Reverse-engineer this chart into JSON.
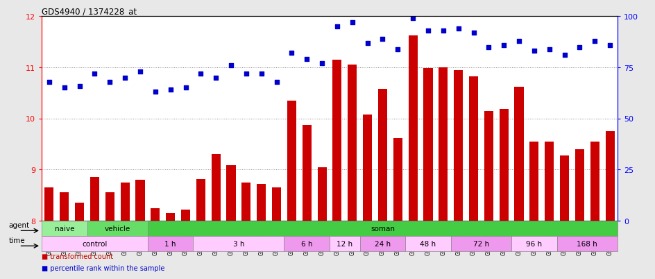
{
  "title": "GDS4940 / 1374228_at",
  "samples": [
    "GSM338857",
    "GSM338858",
    "GSM338859",
    "GSM338862",
    "GSM338864",
    "GSM338877",
    "GSM338880",
    "GSM338860",
    "GSM338861",
    "GSM338863",
    "GSM338865",
    "GSM338866",
    "GSM338867",
    "GSM338868",
    "GSM338869",
    "GSM338870",
    "GSM338871",
    "GSM338872",
    "GSM338873",
    "GSM338874",
    "GSM338875",
    "GSM338876",
    "GSM338878",
    "GSM338879",
    "GSM338881",
    "GSM338882",
    "GSM338883",
    "GSM338884",
    "GSM338885",
    "GSM338886",
    "GSM338887",
    "GSM338888",
    "GSM338889",
    "GSM338890",
    "GSM338891",
    "GSM338892",
    "GSM338893",
    "GSM338894"
  ],
  "bar_values": [
    8.65,
    8.55,
    8.35,
    8.85,
    8.55,
    8.75,
    8.8,
    8.25,
    8.15,
    8.22,
    8.82,
    9.3,
    9.08,
    8.75,
    8.72,
    8.65,
    10.35,
    9.88,
    9.05,
    11.15,
    11.05,
    10.08,
    10.58,
    9.62,
    11.62,
    10.98,
    11.0,
    10.95,
    10.82,
    10.15,
    10.18,
    10.62,
    9.55,
    9.55,
    9.28,
    9.4,
    9.55,
    9.75
  ],
  "dot_values": [
    68,
    65,
    66,
    72,
    68,
    70,
    73,
    63,
    64,
    65,
    72,
    70,
    76,
    72,
    72,
    68,
    82,
    79,
    77,
    95,
    97,
    87,
    89,
    84,
    99,
    93,
    93,
    94,
    92,
    85,
    86,
    88,
    83,
    84,
    81,
    85,
    88,
    86
  ],
  "ylim_left": [
    8,
    12
  ],
  "ylim_right": [
    0,
    100
  ],
  "yticks_left": [
    8,
    9,
    10,
    11,
    12
  ],
  "yticks_right": [
    0,
    25,
    50,
    75,
    100
  ],
  "bar_color": "#cc0000",
  "dot_color": "#0000cc",
  "agent_groups": [
    {
      "label": "naive",
      "start": 0,
      "end": 3,
      "color": "#99ee99"
    },
    {
      "label": "vehicle",
      "start": 3,
      "end": 7,
      "color": "#66dd66"
    },
    {
      "label": "soman",
      "start": 7,
      "end": 38,
      "color": "#44cc44"
    }
  ],
  "time_groups": [
    {
      "label": "control",
      "start": 0,
      "end": 7,
      "color": "#ffccff"
    },
    {
      "label": "1 h",
      "start": 7,
      "end": 10,
      "color": "#ee99ee"
    },
    {
      "label": "3 h",
      "start": 10,
      "end": 16,
      "color": "#ffccff"
    },
    {
      "label": "6 h",
      "start": 16,
      "end": 19,
      "color": "#ee99ee"
    },
    {
      "label": "12 h",
      "start": 19,
      "end": 21,
      "color": "#ffccff"
    },
    {
      "label": "24 h",
      "start": 21,
      "end": 24,
      "color": "#ee99ee"
    },
    {
      "label": "48 h",
      "start": 24,
      "end": 27,
      "color": "#ffccff"
    },
    {
      "label": "72 h",
      "start": 27,
      "end": 31,
      "color": "#ee99ee"
    },
    {
      "label": "96 h",
      "start": 31,
      "end": 34,
      "color": "#ffccff"
    },
    {
      "label": "168 h",
      "start": 34,
      "end": 38,
      "color": "#ee99ee"
    }
  ],
  "legend_bar_label": "transformed count",
  "legend_dot_label": "percentile rank within the sample",
  "grid_color": "#888888",
  "background_color": "#e8e8e8",
  "plot_bg": "#ffffff"
}
